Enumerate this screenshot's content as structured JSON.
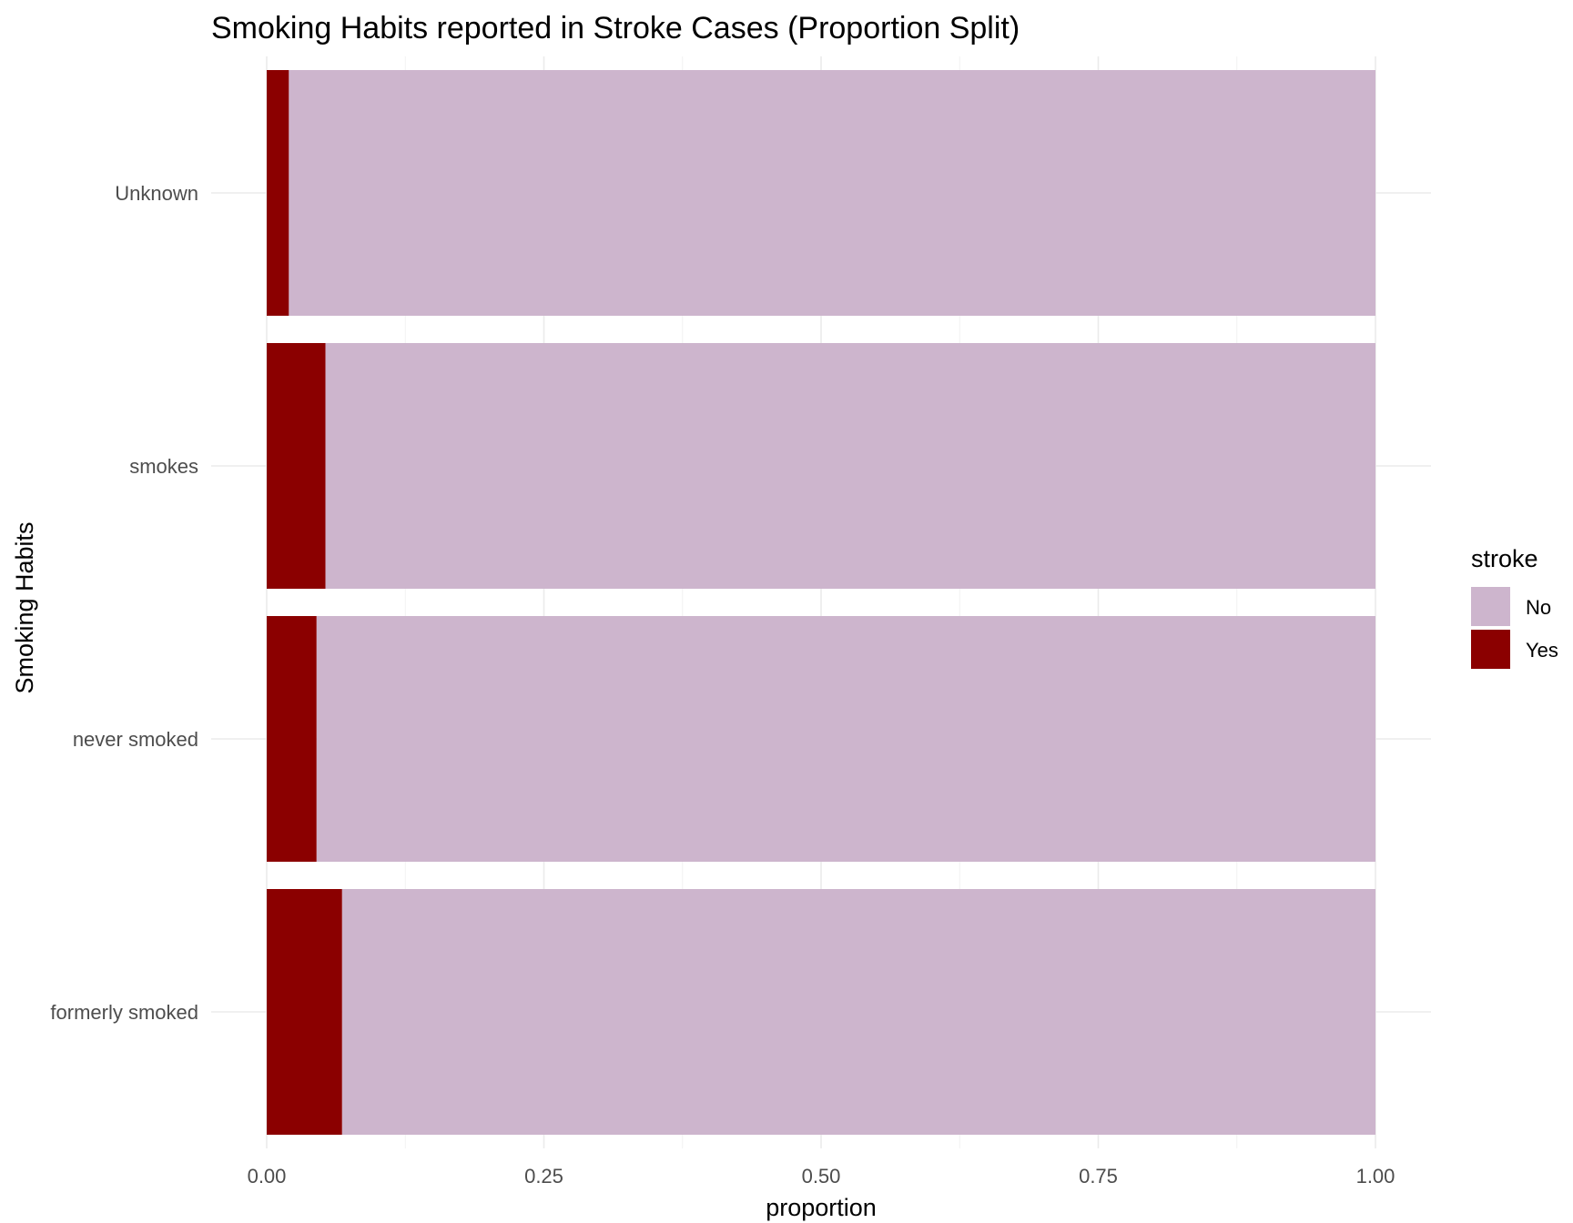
{
  "chart_data": {
    "type": "bar",
    "orientation": "horizontal",
    "stacked": true,
    "title": "Smoking Habits reported in Stroke Cases (Proportion Split)",
    "xlabel": "proportion",
    "ylabel": "Smoking Habits",
    "xlim": [
      0,
      1
    ],
    "x_ticks": [
      0,
      0.25,
      0.5,
      0.75,
      1
    ],
    "x_tick_labels": [
      "0.00",
      "0.25",
      "0.50",
      "0.75",
      "1.00"
    ],
    "categories": [
      "Unknown",
      "smokes",
      "never smoked",
      "formerly smoked"
    ],
    "series": [
      {
        "name": "Yes",
        "color": "#8B0000",
        "values": [
          0.02,
          0.053,
          0.045,
          0.068
        ]
      },
      {
        "name": "No",
        "color": "#CDB5CD",
        "values": [
          0.98,
          0.947,
          0.955,
          0.932
        ]
      }
    ],
    "legend": {
      "title": "stroke",
      "position": "right",
      "entries": [
        {
          "label": "No",
          "color": "#CDB5CD"
        },
        {
          "label": "Yes",
          "color": "#8B0000"
        }
      ]
    },
    "grid": true
  }
}
